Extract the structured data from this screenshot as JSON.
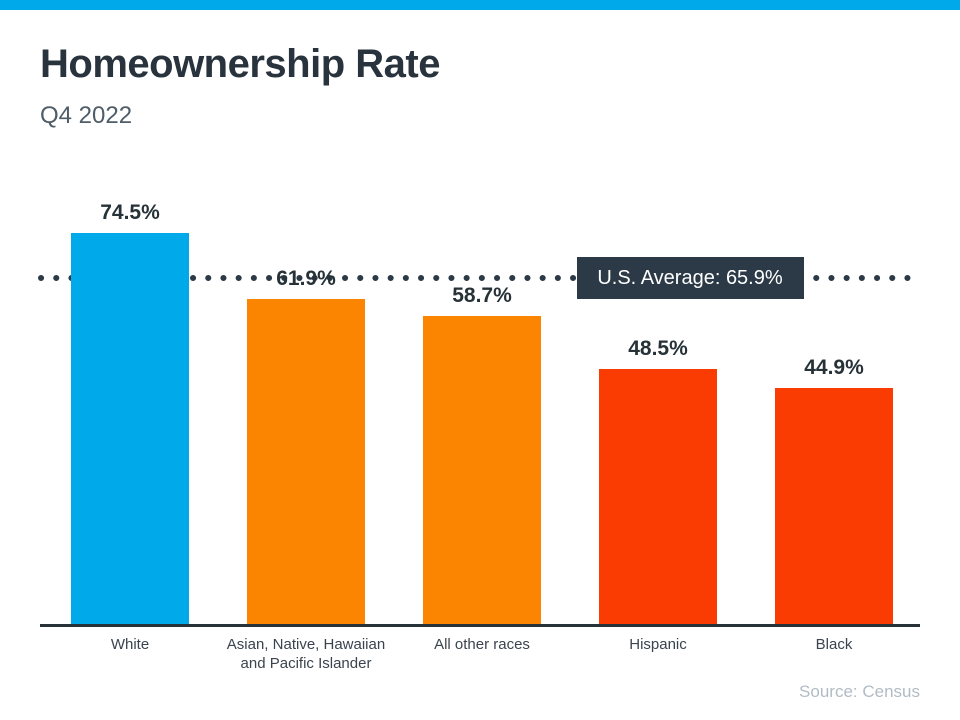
{
  "page": {
    "title": "Homeownership Rate",
    "subtitle": "Q4 2022",
    "source": "Source: Census",
    "accent_color": "#00a9e9"
  },
  "chart_data": {
    "type": "bar",
    "title": "Homeownership Rate",
    "subtitle": "Q4 2022",
    "categories": [
      "White",
      "Asian, Native, Hawaiian and Pacific Islander",
      "All other races",
      "Hispanic",
      "Black"
    ],
    "values": [
      74.5,
      61.9,
      58.7,
      48.5,
      44.9
    ],
    "value_labels": [
      "74.5%",
      "61.9%",
      "58.7%",
      "48.5%",
      "44.9%"
    ],
    "bar_colors": [
      "#00a9e9",
      "#fb8500",
      "#fb8500",
      "#fa3c02",
      "#fa3c02"
    ],
    "average_line": {
      "label": "U.S. Average: 65.9%",
      "value": 65.9,
      "style": "dotted",
      "color": "#2c3a47"
    },
    "ylim": [
      0,
      100
    ],
    "xlabel": "",
    "ylabel": "",
    "grid": false,
    "legend": false,
    "source": "Source: Census"
  }
}
